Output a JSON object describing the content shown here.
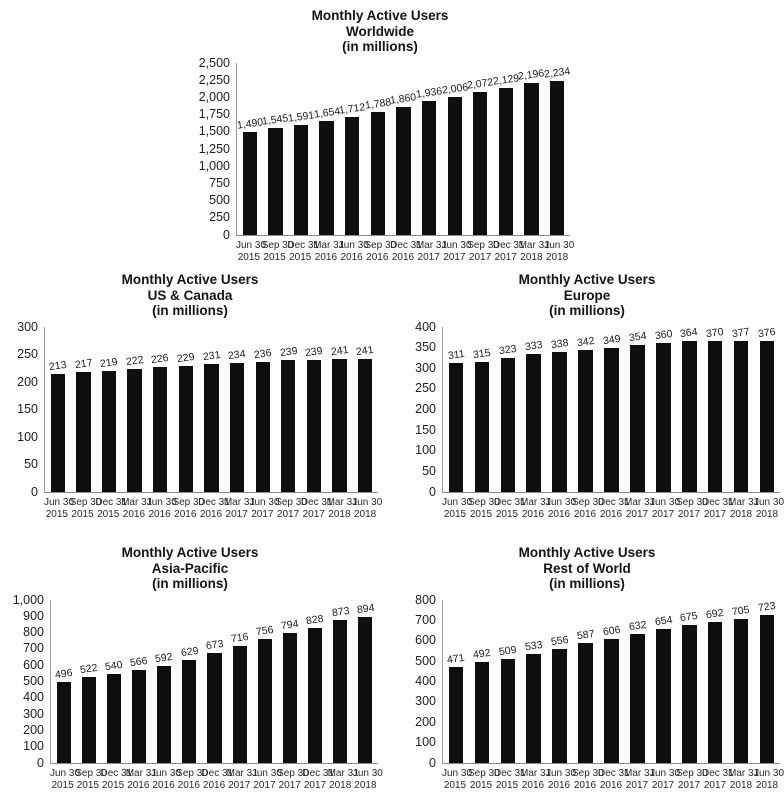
{
  "colors": {
    "bar": "#0e0e0e",
    "axis": "#8c8c8c",
    "text": "#1a1a1a",
    "background": "#fdfdfd"
  },
  "chart_data": [
    {
      "type": "bar",
      "title": "Monthly Active Users Worldwide (in millions)",
      "title_lines": [
        "Monthly Active Users",
        "Worldwide",
        "(in millions)"
      ],
      "categories": [
        "Jun 30 2015",
        "Sep 30 2015",
        "Dec 31 2015",
        "Mar 31 2016",
        "Jun 30 2016",
        "Sep 30 2016",
        "Dec 31 2016",
        "Mar 31 2017",
        "Jun 30 2017",
        "Sep 30 2017",
        "Dec 31 2017",
        "Mar 31 2018",
        "Jun 30 2018"
      ],
      "values": [
        1490,
        1545,
        1591,
        1654,
        1712,
        1788,
        1860,
        1936,
        2006,
        2072,
        2129,
        2196,
        2234
      ],
      "value_labels": [
        "1,490",
        "1,545",
        "1,591",
        "1,654",
        "1,712",
        "1,788",
        "1,860",
        "1,936",
        "2,006",
        "2,072",
        "2,129",
        "2,196",
        "2,234"
      ],
      "xlabel": "",
      "ylabel": "",
      "ylim": [
        0,
        2500
      ],
      "ystep": 250,
      "yticks": [
        "2,500",
        "2,250",
        "2,000",
        "1,750",
        "1,500",
        "1,250",
        "1,000",
        "750",
        "500",
        "250",
        "0"
      ],
      "grid": false,
      "legend": false,
      "bar_color": "#0e0e0e"
    },
    {
      "type": "bar",
      "title": "Monthly Active Users US & Canada (in millions)",
      "title_lines": [
        "Monthly Active Users",
        "US & Canada",
        "(in millions)"
      ],
      "categories": [
        "Jun 30 2015",
        "Sep 30 2015",
        "Dec 31 2015",
        "Mar 31 2016",
        "Jun 30 2016",
        "Sep 30 2016",
        "Dec 31 2016",
        "Mar 31 2017",
        "Jun 30 2017",
        "Sep 30 2017",
        "Dec 31 2017",
        "Mar 31 2018",
        "Jun 30 2018"
      ],
      "values": [
        213,
        217,
        219,
        222,
        226,
        229,
        231,
        234,
        236,
        239,
        239,
        241,
        241
      ],
      "value_labels": [
        "213",
        "217",
        "219",
        "222",
        "226",
        "229",
        "231",
        "234",
        "236",
        "239",
        "239",
        "241",
        "241"
      ],
      "xlabel": "",
      "ylabel": "",
      "ylim": [
        0,
        300
      ],
      "ystep": 50,
      "yticks": [
        "300",
        "250",
        "200",
        "150",
        "100",
        "50",
        "0"
      ],
      "grid": false,
      "legend": false,
      "bar_color": "#0e0e0e"
    },
    {
      "type": "bar",
      "title": "Monthly Active Users Europe (in millions)",
      "title_lines": [
        "Monthly Active Users",
        "Europe",
        "(in millions)"
      ],
      "categories": [
        "Jun 30 2015",
        "Sep 30 2015",
        "Dec 31 2015",
        "Mar 31 2016",
        "Jun 30 2016",
        "Sep 30 2016",
        "Dec 31 2016",
        "Mar 31 2017",
        "Jun 30 2017",
        "Sep 30 2017",
        "Dec 31 2017",
        "Mar 31 2018",
        "Jun 30 2018"
      ],
      "values": [
        311,
        315,
        323,
        333,
        338,
        342,
        349,
        354,
        360,
        364,
        370,
        377,
        376
      ],
      "value_labels": [
        "311",
        "315",
        "323",
        "333",
        "338",
        "342",
        "349",
        "354",
        "360",
        "364",
        "370",
        "377",
        "376"
      ],
      "xlabel": "",
      "ylabel": "",
      "ylim": [
        0,
        400
      ],
      "ystep": 50,
      "yticks": [
        "400",
        "350",
        "300",
        "250",
        "200",
        "150",
        "100",
        "50",
        "0"
      ],
      "grid": false,
      "legend": false,
      "bar_color": "#0e0e0e"
    },
    {
      "type": "bar",
      "title": "Monthly Active Users Asia-Pacific (in millions)",
      "title_lines": [
        "Monthly Active Users",
        "Asia-Pacific",
        "(in millions)"
      ],
      "categories": [
        "Jun 30 2015",
        "Sep 30 2015",
        "Dec 31 2015",
        "Mar 31 2016",
        "Jun 30 2016",
        "Sep 30 2016",
        "Dec 31 2016",
        "Mar 31 2017",
        "Jun 30 2017",
        "Sep 30 2017",
        "Dec 31 2017",
        "Mar 31 2018",
        "Jun 30 2018"
      ],
      "values": [
        496,
        522,
        540,
        566,
        592,
        629,
        673,
        716,
        756,
        794,
        828,
        873,
        894
      ],
      "value_labels": [
        "496",
        "522",
        "540",
        "566",
        "592",
        "629",
        "673",
        "716",
        "756",
        "794",
        "828",
        "873",
        "894"
      ],
      "xlabel": "",
      "ylabel": "",
      "ylim": [
        0,
        1000
      ],
      "ystep": 100,
      "yticks": [
        "1,000",
        "900",
        "800",
        "700",
        "600",
        "500",
        "400",
        "300",
        "200",
        "100",
        "0"
      ],
      "grid": false,
      "legend": false,
      "bar_color": "#0e0e0e"
    },
    {
      "type": "bar",
      "title": "Monthly Active Users Rest of World (in millions)",
      "title_lines": [
        "Monthly Active Users",
        "Rest of World",
        "(in millions)"
      ],
      "categories": [
        "Jun 30 2015",
        "Sep 30 2015",
        "Dec 31 2015",
        "Mar 31 2016",
        "Jun 30 2016",
        "Sep 30 2016",
        "Dec 31 2016",
        "Mar 31 2017",
        "Jun 30 2017",
        "Sep 30 2017",
        "Dec 31 2017",
        "Mar 31 2018",
        "Jun 30 2018"
      ],
      "values": [
        471,
        492,
        509,
        533,
        556,
        587,
        606,
        632,
        654,
        675,
        692,
        705,
        723
      ],
      "value_labels": [
        "471",
        "492",
        "509",
        "533",
        "556",
        "587",
        "606",
        "632",
        "654",
        "675",
        "692",
        "705",
        "723"
      ],
      "xlabel": "",
      "ylabel": "",
      "ylim": [
        0,
        800
      ],
      "ystep": 100,
      "yticks": [
        "800",
        "700",
        "600",
        "500",
        "400",
        "300",
        "200",
        "100",
        "0"
      ],
      "grid": false,
      "legend": false,
      "bar_color": "#0e0e0e"
    }
  ]
}
